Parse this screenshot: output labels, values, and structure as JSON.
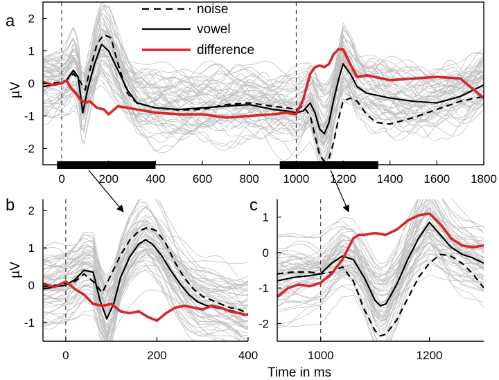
{
  "figure": {
    "x_label": "Time in ms",
    "y_label": "µV"
  },
  "legend": [
    {
      "label": "noise",
      "color": "#000000",
      "style": "dashed"
    },
    {
      "label": "vowel",
      "color": "#000000",
      "style": "solid"
    },
    {
      "label": "difference",
      "color": "#d62728",
      "style": "solid"
    }
  ],
  "colors": {
    "background_traces": "#c0c0c0",
    "difference": "#d62728",
    "noise": "#000000",
    "vowel": "#000000",
    "stimulus_bar": "#000000"
  },
  "panels": [
    {
      "letter": "a"
    },
    {
      "letter": "b"
    },
    {
      "letter": "c"
    }
  ],
  "chart_data": [
    {
      "type": "line",
      "panel": "a",
      "xlim": [
        -80,
        1800
      ],
      "ylim": [
        -2.5,
        2.5
      ],
      "xticks": [
        0,
        200,
        400,
        600,
        800,
        1000,
        1200,
        1400,
        1600,
        1800
      ],
      "yticks": [
        -2,
        -1,
        0,
        1,
        2
      ],
      "vlines": [
        0,
        1000
      ],
      "stimulus_bars": [
        [
          -20,
          400
        ],
        [
          930,
          1350
        ]
      ],
      "background_traces": "many grey single-channel traces",
      "series": [
        {
          "name": "noise",
          "style": "dashed",
          "x": [
            -80,
            -40,
            0,
            20,
            50,
            80,
            100,
            120,
            150,
            180,
            210,
            240,
            280,
            320,
            400,
            500,
            600,
            700,
            800,
            900,
            960,
            1000,
            1030,
            1060,
            1080,
            1100,
            1120,
            1140,
            1160,
            1180,
            1200,
            1230,
            1260,
            1300,
            1340,
            1400,
            1500,
            1600,
            1700,
            1800
          ],
          "y": [
            0,
            0,
            0.05,
            0.1,
            0.3,
            0.05,
            -0.2,
            0.4,
            1.2,
            1.5,
            1.4,
            0.6,
            -0.3,
            -0.6,
            -0.75,
            -0.82,
            -0.8,
            -0.65,
            -0.6,
            -0.7,
            -0.75,
            -0.8,
            -0.7,
            -1.0,
            -1.6,
            -2.2,
            -2.4,
            -2.3,
            -1.8,
            -1.1,
            -0.55,
            -0.45,
            -0.55,
            -0.95,
            -1.2,
            -1.25,
            -1.05,
            -0.8,
            -0.55,
            -0.4
          ]
        },
        {
          "name": "vowel",
          "style": "solid",
          "x": [
            -80,
            -40,
            0,
            20,
            50,
            70,
            90,
            110,
            140,
            170,
            200,
            240,
            280,
            320,
            400,
            500,
            600,
            700,
            800,
            900,
            960,
            1000,
            1030,
            1060,
            1080,
            1100,
            1120,
            1140,
            1160,
            1180,
            1200,
            1230,
            1260,
            1300,
            1400,
            1500,
            1600,
            1700,
            1800
          ],
          "y": [
            -0.1,
            -0.05,
            0,
            0.1,
            0.4,
            0.2,
            -0.9,
            -0.2,
            0.6,
            1.2,
            1.0,
            0.4,
            -0.2,
            -0.6,
            -0.75,
            -0.8,
            -0.75,
            -0.7,
            -0.65,
            -0.8,
            -0.85,
            -0.9,
            -0.85,
            -0.6,
            -0.9,
            -1.4,
            -1.55,
            -1.2,
            -0.5,
            0.1,
            0.6,
            0.3,
            -0.1,
            -0.3,
            -0.45,
            -0.55,
            -0.6,
            -0.4,
            -0.05
          ]
        },
        {
          "name": "difference",
          "style": "solid",
          "x": [
            -80,
            -40,
            0,
            20,
            40,
            60,
            80,
            100,
            120,
            150,
            180,
            200,
            240,
            280,
            320,
            400,
            500,
            600,
            700,
            800,
            900,
            960,
            1000,
            1030,
            1060,
            1080,
            1100,
            1120,
            1140,
            1160,
            1180,
            1200,
            1230,
            1260,
            1300,
            1400,
            1500,
            1600,
            1700,
            1800
          ],
          "y": [
            0.05,
            -0.05,
            0,
            0.1,
            -0.15,
            -0.3,
            -0.5,
            -0.6,
            -0.55,
            -0.75,
            -0.8,
            -0.95,
            -0.7,
            -0.75,
            -0.8,
            -0.9,
            -0.95,
            -0.95,
            -1.05,
            -1.0,
            -0.95,
            -0.9,
            -0.95,
            -0.5,
            0.3,
            0.5,
            0.55,
            0.5,
            0.6,
            0.9,
            1.05,
            1.05,
            0.6,
            0.2,
            0.25,
            0.1,
            0.15,
            0.2,
            0.15,
            -0.45
          ]
        }
      ]
    },
    {
      "type": "line",
      "panel": "b",
      "xlim": [
        -50,
        400
      ],
      "ylim": [
        -1.5,
        2.3
      ],
      "xticks": [
        0,
        200,
        400
      ],
      "yticks": [
        -1,
        0,
        1,
        2
      ],
      "vlines": [
        0
      ],
      "background_traces": "many grey single-channel traces",
      "series": [
        {
          "name": "noise",
          "style": "dashed",
          "x": [
            -50,
            -25,
            0,
            20,
            40,
            60,
            80,
            100,
            120,
            140,
            160,
            180,
            200,
            220,
            240,
            260,
            280,
            300,
            320,
            340,
            360,
            380,
            400
          ],
          "y": [
            -0.05,
            0,
            0.05,
            0.1,
            0.3,
            0.1,
            -0.2,
            0.3,
            0.8,
            1.2,
            1.45,
            1.55,
            1.45,
            1.1,
            0.6,
            0.2,
            -0.1,
            -0.3,
            -0.4,
            -0.5,
            -0.6,
            -0.65,
            -0.75
          ]
        },
        {
          "name": "vowel",
          "style": "solid",
          "x": [
            -50,
            -25,
            0,
            20,
            40,
            60,
            75,
            90,
            105,
            120,
            140,
            160,
            175,
            190,
            210,
            230,
            250,
            270,
            290,
            310,
            330,
            350,
            370,
            390,
            400
          ],
          "y": [
            -0.1,
            -0.05,
            0,
            0.15,
            0.4,
            0.35,
            -0.4,
            -0.9,
            -0.5,
            0.2,
            0.75,
            1.1,
            1.22,
            1.1,
            0.8,
            0.4,
            0.05,
            -0.25,
            -0.45,
            -0.55,
            -0.6,
            -0.65,
            -0.7,
            -0.8,
            -0.8
          ]
        },
        {
          "name": "difference",
          "style": "solid",
          "x": [
            -50,
            -25,
            0,
            20,
            40,
            60,
            80,
            100,
            120,
            140,
            160,
            180,
            200,
            220,
            240,
            260,
            280,
            300,
            320,
            340,
            360,
            380,
            400
          ],
          "y": [
            0.05,
            -0.05,
            0.1,
            -0.1,
            -0.25,
            -0.5,
            -0.55,
            -0.5,
            -0.7,
            -0.75,
            -0.7,
            -0.85,
            -0.95,
            -0.75,
            -0.6,
            -0.55,
            -0.6,
            -0.65,
            -0.55,
            -0.6,
            -0.7,
            -0.75,
            -0.8
          ]
        }
      ]
    },
    {
      "type": "line",
      "panel": "c",
      "xlim": [
        920,
        1300
      ],
      "ylim": [
        -2.5,
        1.5
      ],
      "xticks": [
        1000,
        1200
      ],
      "yticks": [
        -2,
        -1,
        0,
        1
      ],
      "vlines": [
        1000
      ],
      "background_traces": "many grey single-channel traces",
      "series": [
        {
          "name": "noise",
          "style": "dashed",
          "x": [
            920,
            950,
            980,
            1000,
            1020,
            1040,
            1060,
            1080,
            1100,
            1110,
            1120,
            1140,
            1160,
            1180,
            1200,
            1220,
            1240,
            1260,
            1280,
            1300
          ],
          "y": [
            -0.6,
            -0.55,
            -0.55,
            -0.6,
            -0.55,
            -0.4,
            -0.8,
            -1.6,
            -2.2,
            -2.35,
            -2.3,
            -1.9,
            -1.3,
            -0.7,
            -0.3,
            -0.05,
            -0.1,
            -0.3,
            -0.6,
            -1.0
          ]
        },
        {
          "name": "vowel",
          "style": "solid",
          "x": [
            920,
            950,
            980,
            1000,
            1020,
            1040,
            1060,
            1080,
            1100,
            1110,
            1120,
            1140,
            1160,
            1180,
            1200,
            1220,
            1240,
            1260,
            1280,
            1300
          ],
          "y": [
            -0.8,
            -0.7,
            -0.65,
            -0.6,
            -0.3,
            -0.1,
            -0.2,
            -0.7,
            -1.35,
            -1.5,
            -1.45,
            -0.9,
            -0.2,
            0.4,
            0.85,
            0.5,
            0.15,
            -0.05,
            -0.15,
            -0.3
          ]
        },
        {
          "name": "difference",
          "style": "solid",
          "x": [
            920,
            940,
            960,
            980,
            1000,
            1020,
            1040,
            1060,
            1070,
            1080,
            1100,
            1120,
            1140,
            1160,
            1180,
            1200,
            1220,
            1240,
            1260,
            1280,
            1300
          ],
          "y": [
            -1.25,
            -1.0,
            -0.9,
            -0.95,
            -0.85,
            -0.6,
            -0.2,
            0.4,
            0.5,
            0.5,
            0.55,
            0.5,
            0.65,
            0.9,
            1.05,
            1.1,
            0.8,
            0.4,
            0.2,
            0.15,
            0.2
          ]
        }
      ]
    }
  ]
}
